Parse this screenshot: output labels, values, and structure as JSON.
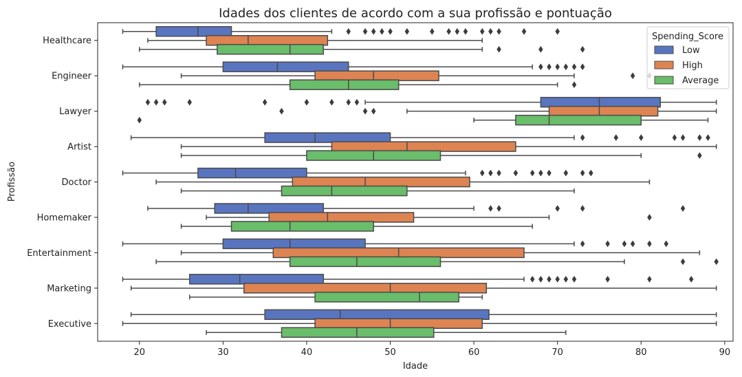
{
  "chart_data": {
    "type": "boxplot",
    "orientation": "horizontal",
    "title": "Idades dos clientes de acordo com a sua profissão e pontuação",
    "xlabel": "Idade",
    "ylabel": "Profissão",
    "xlim": [
      15,
      91
    ],
    "xticks": [
      20,
      30,
      40,
      50,
      60,
      70,
      80,
      90
    ],
    "grid": false,
    "legend": {
      "title": "Spending_Score",
      "position": "top-right"
    },
    "categories": [
      "Healthcare",
      "Engineer",
      "Lawyer",
      "Artist",
      "Doctor",
      "Homemaker",
      "Entertainment",
      "Marketing",
      "Executive"
    ],
    "series": [
      {
        "name": "Low",
        "color": "#5975c0",
        "boxes": [
          {
            "whislo": 18,
            "q1": 22,
            "med": 27,
            "q3": 31,
            "whishi": 43,
            "fliers": [
              45,
              47,
              48,
              49,
              50,
              52,
              55,
              57,
              58,
              59,
              61,
              62,
              63,
              66,
              70
            ]
          },
          {
            "whislo": 18,
            "q1": 30,
            "med": 36.5,
            "q3": 45,
            "whishi": 67,
            "fliers": [
              68,
              69,
              70,
              71,
              72,
              73
            ]
          },
          {
            "whislo": 47,
            "q1": 68,
            "med": 75,
            "q3": 82.3,
            "whishi": 89,
            "fliers": [
              21,
              22,
              23,
              26,
              35,
              40,
              43,
              45,
              46
            ]
          },
          {
            "whislo": 19,
            "q1": 35,
            "med": 41,
            "q3": 50,
            "whishi": 72,
            "fliers": [
              73,
              77,
              80,
              84,
              85,
              87,
              88
            ]
          },
          {
            "whislo": 18,
            "q1": 27,
            "med": 31.5,
            "q3": 40,
            "whishi": 59,
            "fliers": [
              61,
              62,
              63,
              65,
              67,
              68,
              69,
              71,
              73,
              74
            ]
          },
          {
            "whislo": 21,
            "q1": 29,
            "med": 33,
            "q3": 42,
            "whishi": 60,
            "fliers": [
              62,
              63,
              70,
              73,
              85
            ]
          },
          {
            "whislo": 18,
            "q1": 30,
            "med": 38,
            "q3": 47,
            "whishi": 72,
            "fliers": [
              73,
              76,
              78,
              79,
              81,
              83
            ]
          },
          {
            "whislo": 18,
            "q1": 26,
            "med": 32,
            "q3": 42,
            "whishi": 66,
            "fliers": [
              67,
              68,
              69,
              70,
              71,
              72,
              76,
              81,
              86
            ]
          },
          {
            "whislo": 19,
            "q1": 35,
            "med": 44,
            "q3": 61.8,
            "whishi": 89,
            "fliers": []
          }
        ]
      },
      {
        "name": "High",
        "color": "#dd8452",
        "boxes": [
          {
            "whislo": 21,
            "q1": 28,
            "med": 33,
            "q3": 42.5,
            "whishi": 61,
            "fliers": []
          },
          {
            "whislo": 25,
            "q1": 41,
            "med": 48,
            "q3": 55.8,
            "whishi": 72,
            "fliers": [
              79,
              81
            ]
          },
          {
            "whislo": 52,
            "q1": 69,
            "med": 75,
            "q3": 82,
            "whishi": 89,
            "fliers": [
              37,
              47,
              48
            ]
          },
          {
            "whislo": 25,
            "q1": 43,
            "med": 52,
            "q3": 65,
            "whishi": 89,
            "fliers": []
          },
          {
            "whislo": 22,
            "q1": 38.3,
            "med": 47,
            "q3": 59.5,
            "whishi": 81,
            "fliers": []
          },
          {
            "whislo": 28,
            "q1": 35.5,
            "med": 42.5,
            "q3": 52.8,
            "whishi": 69,
            "fliers": [
              81
            ]
          },
          {
            "whislo": 25,
            "q1": 36,
            "med": 51,
            "q3": 66,
            "whishi": 87,
            "fliers": []
          },
          {
            "whislo": 19,
            "q1": 32.5,
            "med": 50,
            "q3": 61.5,
            "whishi": 89,
            "fliers": []
          },
          {
            "whislo": 18,
            "q1": 41,
            "med": 50,
            "q3": 61,
            "whishi": 89,
            "fliers": []
          }
        ]
      },
      {
        "name": "Average",
        "color": "#6abd6a",
        "boxes": [
          {
            "whislo": 20,
            "q1": 29.3,
            "med": 38,
            "q3": 42,
            "whishi": 61,
            "fliers": [
              63,
              68,
              73
            ]
          },
          {
            "whislo": 20,
            "q1": 38,
            "med": 45,
            "q3": 51,
            "whishi": 70,
            "fliers": [
              72
            ]
          },
          {
            "whislo": 60,
            "q1": 65,
            "med": 69,
            "q3": 80,
            "whishi": 88,
            "fliers": [
              20
            ]
          },
          {
            "whislo": 25,
            "q1": 40,
            "med": 48,
            "q3": 56,
            "whishi": 80,
            "fliers": [
              87
            ]
          },
          {
            "whislo": 25,
            "q1": 37,
            "med": 43,
            "q3": 52,
            "whishi": 72,
            "fliers": []
          },
          {
            "whislo": 25,
            "q1": 31,
            "med": 38,
            "q3": 48,
            "whishi": 67,
            "fliers": []
          },
          {
            "whislo": 22,
            "q1": 38,
            "med": 46,
            "q3": 56,
            "whishi": 78,
            "fliers": [
              85,
              89
            ]
          },
          {
            "whislo": 26,
            "q1": 41,
            "med": 53.5,
            "q3": 58.2,
            "whishi": 61,
            "fliers": []
          },
          {
            "whislo": 28,
            "q1": 37,
            "med": 46,
            "q3": 55.2,
            "whishi": 71,
            "fliers": []
          }
        ]
      }
    ]
  }
}
